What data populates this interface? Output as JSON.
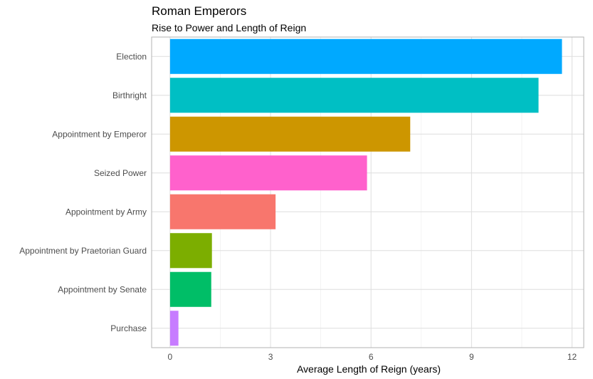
{
  "chart_data": {
    "type": "bar",
    "orientation": "horizontal",
    "title": "Roman Emperors",
    "subtitle": "Rise to Power and Length of Reign",
    "xlabel": "Average Length of Reign (years)",
    "ylabel": "",
    "xlim": [
      -0.55,
      12.35
    ],
    "xticks": [
      0,
      3,
      6,
      9,
      12
    ],
    "grid": true,
    "legend": "none",
    "categories": [
      "Election",
      "Birthright",
      "Appointment by Emperor",
      "Seized Power",
      "Appointment by Army",
      "Appointment by Praetorian Guard",
      "Appointment by Senate",
      "Purchase"
    ],
    "values": [
      11.7,
      11.0,
      7.17,
      5.88,
      3.15,
      1.25,
      1.23,
      0.25
    ],
    "colors": [
      "#00A9FF",
      "#00BFC4",
      "#CD9600",
      "#FF61CC",
      "#F8766D",
      "#7CAE00",
      "#00BE67",
      "#C77CFF"
    ]
  }
}
